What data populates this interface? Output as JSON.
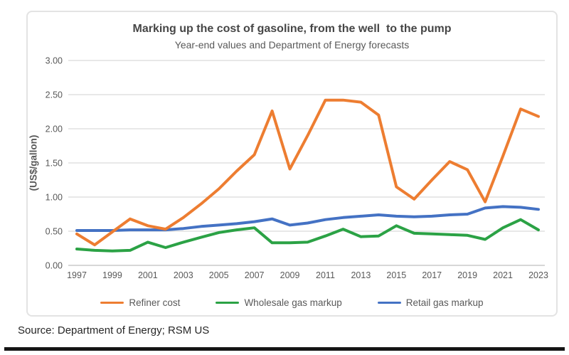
{
  "page": {
    "source_text": "Source: Department of Energy; RSM US"
  },
  "chart_data": {
    "type": "line",
    "title": "Marking up the cost of gasoline, from the well  to the pump",
    "subtitle": "Year-end values and Department of Energy forecasts",
    "ylabel": "(US$/gallon)",
    "ylim": [
      0,
      3
    ],
    "y_ticks": [
      0.0,
      0.5,
      1.0,
      1.5,
      2.0,
      2.5,
      3.0
    ],
    "y_tick_labels": [
      "0.00",
      "0.50",
      "1.00",
      "1.50",
      "2.00",
      "2.50",
      "3.00"
    ],
    "grid": "horizontal",
    "grid_color": "#d9d9d9",
    "axis_line_color": "#bfbfbf",
    "legend_position": "bottom",
    "x": [
      1997,
      1998,
      1999,
      2000,
      2001,
      2002,
      2003,
      2004,
      2005,
      2006,
      2007,
      2008,
      2009,
      2010,
      2011,
      2012,
      2013,
      2014,
      2015,
      2016,
      2017,
      2018,
      2019,
      2020,
      2021,
      2022,
      2023
    ],
    "x_tick_labels": [
      "1997",
      "1999",
      "2001",
      "2003",
      "2005",
      "2007",
      "2009",
      "2011",
      "2013",
      "2015",
      "2017",
      "2019",
      "2021",
      "2023"
    ],
    "series": [
      {
        "name": "Refiner cost",
        "color": "#ED7D31",
        "values": [
          0.46,
          0.3,
          0.49,
          0.68,
          0.58,
          0.53,
          0.7,
          0.9,
          1.12,
          1.38,
          1.62,
          2.26,
          1.41,
          1.9,
          2.42,
          2.42,
          2.39,
          2.2,
          1.15,
          0.97,
          1.25,
          1.52,
          1.4,
          0.93,
          1.6,
          2.29,
          2.18
        ]
      },
      {
        "name": "Wholesale gas markup",
        "color": "#2BA245",
        "values": [
          0.24,
          0.22,
          0.21,
          0.22,
          0.34,
          0.26,
          0.34,
          0.41,
          0.48,
          0.52,
          0.55,
          0.33,
          0.33,
          0.34,
          0.43,
          0.53,
          0.42,
          0.43,
          0.58,
          0.47,
          0.46,
          0.45,
          0.44,
          0.38,
          0.55,
          0.67,
          0.52
        ]
      },
      {
        "name": "Retail gas markup",
        "color": "#4472C4",
        "values": [
          0.51,
          0.51,
          0.51,
          0.52,
          0.52,
          0.52,
          0.54,
          0.57,
          0.59,
          0.61,
          0.64,
          0.68,
          0.59,
          0.62,
          0.67,
          0.7,
          0.72,
          0.74,
          0.72,
          0.71,
          0.72,
          0.74,
          0.75,
          0.84,
          0.86,
          0.85,
          0.82
        ]
      }
    ]
  }
}
